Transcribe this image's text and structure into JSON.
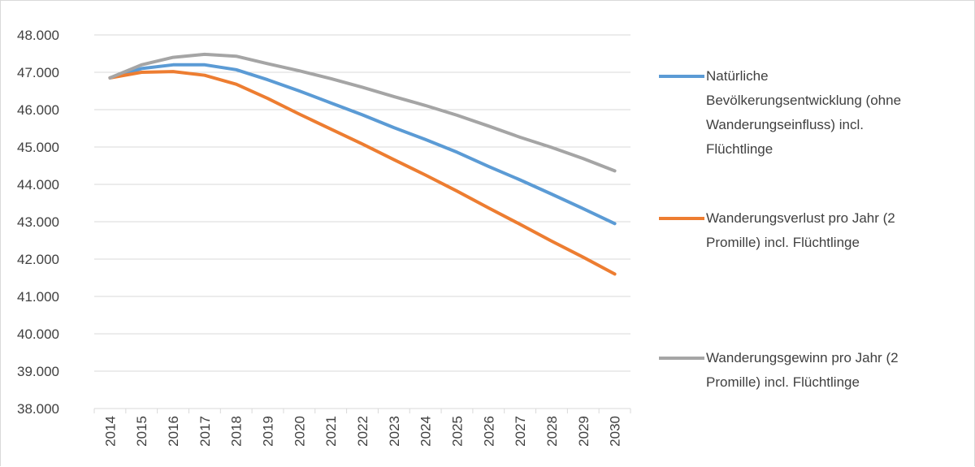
{
  "chart_data": {
    "type": "line",
    "title": "",
    "xlabel": "",
    "ylabel": "",
    "categories": [
      "2014",
      "2015",
      "2016",
      "2017",
      "2018",
      "2019",
      "2020",
      "2021",
      "2022",
      "2023",
      "2024",
      "2025",
      "2026",
      "2027",
      "2028",
      "2029",
      "2030"
    ],
    "ylim": [
      38000,
      48000
    ],
    "ytick_values": [
      38000,
      39000,
      40000,
      41000,
      42000,
      43000,
      44000,
      45000,
      46000,
      47000,
      48000
    ],
    "ytick_labels": [
      "38.000",
      "39.000",
      "40.000",
      "41.000",
      "42.000",
      "43.000",
      "44.000",
      "45.000",
      "46.000",
      "47.000",
      "48.000"
    ],
    "grid": true,
    "legend_position": "right",
    "series": [
      {
        "name": "Natürliche Bevölkerungsentwicklung (ohne Wanderungseinfluss) incl. Flüchtlinge",
        "legend_lines": "Natürliche\nBevölkerungsentwicklung (ohne\nWanderungseinfluss) incl.\nFlüchtlinge",
        "color": "#5b9bd5",
        "values": [
          46850,
          47100,
          47200,
          47200,
          47070,
          46800,
          46500,
          46180,
          45860,
          45520,
          45200,
          44860,
          44480,
          44120,
          43740,
          43350,
          42950
        ]
      },
      {
        "name": "Wanderungsverlust pro Jahr (2 Promille) incl.  Flüchtlinge",
        "legend_lines": "Wanderungsverlust pro Jahr (2\nPromille) incl.  Flüchtlinge",
        "color": "#ed7d31",
        "values": [
          46850,
          47000,
          47020,
          46920,
          46680,
          46300,
          45880,
          45480,
          45080,
          44660,
          44250,
          43820,
          43370,
          42930,
          42480,
          42050,
          41600
        ]
      },
      {
        "name": "Wanderungsgewinn pro Jahr (2 Promille) incl. Flüchtlinge",
        "legend_lines": "Wanderungsgewinn pro Jahr (2\nPromille) incl. Flüchtlinge",
        "color": "#a5a5a5",
        "values": [
          46850,
          47200,
          47400,
          47480,
          47430,
          47230,
          47040,
          46830,
          46600,
          46350,
          46110,
          45850,
          45560,
          45260,
          44990,
          44690,
          44360
        ]
      }
    ]
  }
}
